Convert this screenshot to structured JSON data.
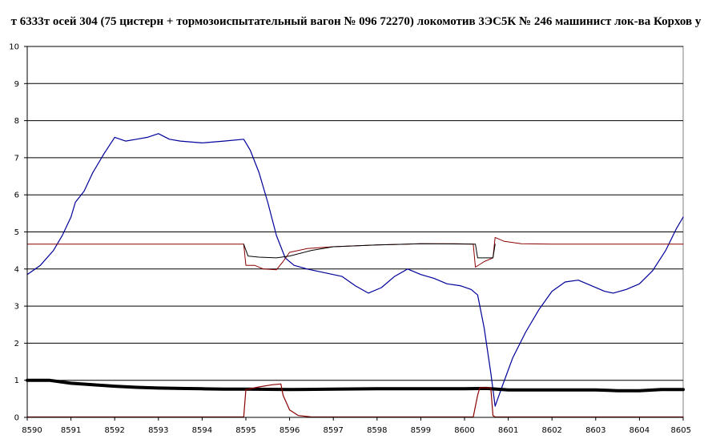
{
  "chart_data": {
    "type": "line",
    "title": "т 6333т осей 304 (75 цистерн + тормозоиспытательный вагон № 096 72270) локомотив 3ЭС5К № 246 машинист лок-ва Корхов у",
    "xlabel": "",
    "ylabel": "",
    "xlim": [
      8590,
      8605
    ],
    "ylim": [
      0,
      10
    ],
    "x_ticks": [
      "8590",
      "8591",
      "8592",
      "8593",
      "8594",
      "8595",
      "8596",
      "8597",
      "8598",
      "8599",
      "8600",
      "8601",
      "8602",
      "8603",
      "8604",
      "8605"
    ],
    "y_ticks": [
      "0",
      "1",
      "2",
      "3",
      "4",
      "5",
      "6",
      "7",
      "8",
      "9",
      "10"
    ],
    "grid": "horizontal",
    "legend": "none",
    "series": [
      {
        "color": "#00009a",
        "width": 1.2,
        "points": [
          [
            8590,
            3.85
          ],
          [
            8590.3,
            4.1
          ],
          [
            8590.6,
            4.5
          ],
          [
            8590.8,
            4.9
          ],
          [
            8591,
            5.4
          ],
          [
            8591.1,
            5.8
          ],
          [
            8591.3,
            6.1
          ],
          [
            8591.5,
            6.6
          ],
          [
            8591.75,
            7.1
          ],
          [
            8592,
            7.55
          ],
          [
            8592.25,
            7.45
          ],
          [
            8592.5,
            7.5
          ],
          [
            8592.75,
            7.55
          ],
          [
            8593,
            7.65
          ],
          [
            8593.25,
            7.5
          ],
          [
            8593.5,
            7.45
          ],
          [
            8594,
            7.4
          ],
          [
            8594.5,
            7.45
          ],
          [
            8594.95,
            7.5
          ],
          [
            8595.1,
            7.2
          ],
          [
            8595.3,
            6.6
          ],
          [
            8595.5,
            5.8
          ],
          [
            8595.7,
            4.9
          ],
          [
            8595.9,
            4.3
          ],
          [
            8596.1,
            4.1
          ],
          [
            8596.4,
            4.0
          ],
          [
            8596.8,
            3.9
          ],
          [
            8597.2,
            3.8
          ],
          [
            8597.5,
            3.55
          ],
          [
            8597.8,
            3.35
          ],
          [
            8598.1,
            3.5
          ],
          [
            8598.4,
            3.8
          ],
          [
            8598.7,
            4.0
          ],
          [
            8599.0,
            3.85
          ],
          [
            8599.3,
            3.75
          ],
          [
            8599.6,
            3.6
          ],
          [
            8599.9,
            3.55
          ],
          [
            8600.15,
            3.45
          ],
          [
            8600.3,
            3.3
          ],
          [
            8600.45,
            2.4
          ],
          [
            8600.6,
            1.2
          ],
          [
            8600.7,
            0.3
          ],
          [
            8600.85,
            0.8
          ],
          [
            8601.1,
            1.6
          ],
          [
            8601.4,
            2.3
          ],
          [
            8601.7,
            2.9
          ],
          [
            8602.0,
            3.4
          ],
          [
            8602.3,
            3.65
          ],
          [
            8602.6,
            3.7
          ],
          [
            8602.9,
            3.55
          ],
          [
            8603.2,
            3.4
          ],
          [
            8603.4,
            3.35
          ],
          [
            8603.7,
            3.45
          ],
          [
            8604.0,
            3.6
          ],
          [
            8604.3,
            3.95
          ],
          [
            8604.6,
            4.5
          ],
          [
            8604.85,
            5.1
          ],
          [
            8605,
            5.4
          ]
        ]
      },
      {
        "color": "#8b0000",
        "width": 1.0,
        "points": [
          [
            8590,
            4.67
          ],
          [
            8594.95,
            4.67
          ],
          [
            8595.0,
            4.1
          ],
          [
            8595.2,
            4.1
          ],
          [
            8595.4,
            4.0
          ],
          [
            8595.7,
            3.98
          ],
          [
            8595.85,
            4.2
          ],
          [
            8596.0,
            4.45
          ],
          [
            8596.4,
            4.55
          ],
          [
            8597,
            4.6
          ],
          [
            8598,
            4.65
          ],
          [
            8599,
            4.68
          ],
          [
            8599.8,
            4.68
          ],
          [
            8600.2,
            4.67
          ],
          [
            8600.25,
            4.05
          ],
          [
            8600.45,
            4.2
          ],
          [
            8600.65,
            4.3
          ],
          [
            8600.7,
            4.85
          ],
          [
            8600.9,
            4.75
          ],
          [
            8601.3,
            4.68
          ],
          [
            8602,
            4.67
          ],
          [
            8605,
            4.67
          ]
        ]
      },
      {
        "color": "#000000",
        "width": 1.0,
        "points": [
          [
            8594.95,
            4.67
          ],
          [
            8595.05,
            4.35
          ],
          [
            8595.3,
            4.32
          ],
          [
            8595.7,
            4.3
          ],
          [
            8596.0,
            4.35
          ],
          [
            8596.5,
            4.5
          ],
          [
            8597,
            4.6
          ],
          [
            8598,
            4.65
          ],
          [
            8599,
            4.68
          ],
          [
            8600.25,
            4.67
          ],
          [
            8600.3,
            4.3
          ],
          [
            8600.65,
            4.3
          ],
          [
            8600.7,
            4.67
          ]
        ]
      },
      {
        "color": "#000000",
        "width": 4.0,
        "points": [
          [
            8590,
            1.0
          ],
          [
            8590.5,
            1.0
          ],
          [
            8591,
            0.92
          ],
          [
            8591.5,
            0.88
          ],
          [
            8592,
            0.84
          ],
          [
            8592.5,
            0.81
          ],
          [
            8593,
            0.79
          ],
          [
            8593.5,
            0.78
          ],
          [
            8594,
            0.77
          ],
          [
            8594.5,
            0.76
          ],
          [
            8595,
            0.76
          ],
          [
            8596,
            0.75
          ],
          [
            8597,
            0.76
          ],
          [
            8598,
            0.77
          ],
          [
            8599,
            0.77
          ],
          [
            8600,
            0.77
          ],
          [
            8600.5,
            0.78
          ],
          [
            8601,
            0.74
          ],
          [
            8602,
            0.74
          ],
          [
            8603,
            0.74
          ],
          [
            8603.5,
            0.72
          ],
          [
            8604,
            0.72
          ],
          [
            8604.5,
            0.75
          ],
          [
            8605,
            0.75
          ]
        ]
      },
      {
        "color": "#8b0000",
        "width": 1.2,
        "points": [
          [
            8590,
            0.01
          ],
          [
            8594.95,
            0.01
          ],
          [
            8595.0,
            0.75
          ],
          [
            8595.3,
            0.82
          ],
          [
            8595.6,
            0.88
          ],
          [
            8595.8,
            0.9
          ],
          [
            8595.85,
            0.6
          ],
          [
            8596.0,
            0.2
          ],
          [
            8596.2,
            0.05
          ],
          [
            8596.5,
            0.01
          ],
          [
            8600.2,
            0.01
          ],
          [
            8600.3,
            0.6
          ],
          [
            8600.35,
            0.8
          ],
          [
            8600.6,
            0.8
          ],
          [
            8600.65,
            0.05
          ],
          [
            8600.7,
            0.01
          ],
          [
            8605,
            0.01
          ]
        ]
      }
    ]
  }
}
